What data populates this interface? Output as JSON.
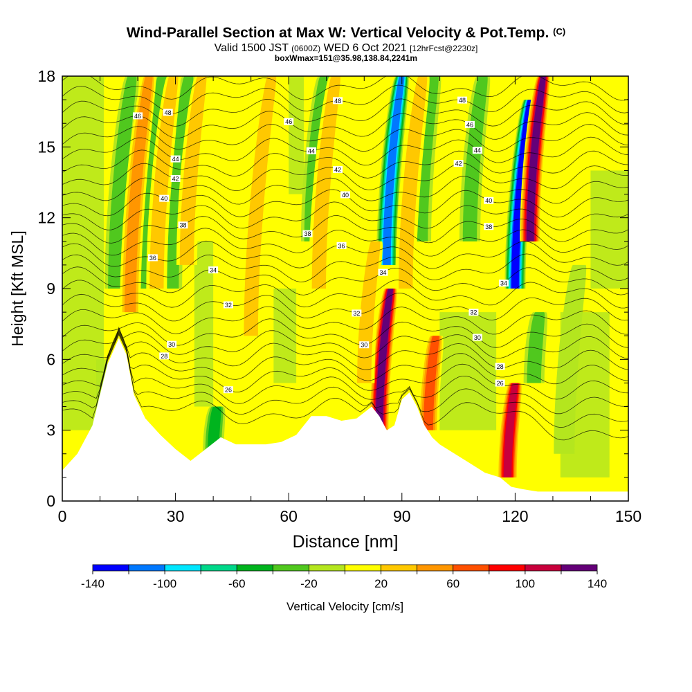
{
  "header": {
    "title": "Wind-Parallel Section at Max W: Vertical Velocity & Pot.Temp.",
    "title_unit": "(C)",
    "subtitle_valid": "Valid 1500 JST",
    "subtitle_utc": "(0600Z)",
    "subtitle_date": "WED 6 Oct 2021",
    "subtitle_fcst": "[12hrFcst@2230z]",
    "subtitle_box": "boxWmax=151@35.98,138.84,2241m"
  },
  "chart_data": {
    "type": "heatmap",
    "title": "Wind-Parallel Section at Max W: Vertical Velocity & Pot.Temp.",
    "xlabel": "Distance [nm]",
    "ylabel": "Height [Kft MSL]",
    "xlim": [
      0,
      150
    ],
    "ylim": [
      0,
      18
    ],
    "x_ticks": [
      0,
      30,
      60,
      90,
      120,
      150
    ],
    "y_ticks": [
      0,
      3,
      6,
      9,
      12,
      15,
      18
    ],
    "colorbar": {
      "label": "Vertical Velocity [cm/s]",
      "ticks": [
        -140,
        -100,
        -60,
        -20,
        20,
        60,
        100,
        140
      ],
      "bounds": [
        -140,
        -120,
        -100,
        -80,
        -60,
        -40,
        -20,
        0,
        20,
        40,
        60,
        80,
        100,
        120,
        140
      ],
      "colors": [
        "#0000ff",
        "#0078ff",
        "#00e6ff",
        "#00d88a",
        "#00b41e",
        "#50c81e",
        "#b4e61e",
        "#ffff00",
        "#ffc800",
        "#ff9600",
        "#ff5000",
        "#ff0000",
        "#c8003c",
        "#640078"
      ]
    },
    "terrain": {
      "x": [
        0,
        4,
        8,
        12,
        15,
        17,
        19,
        22,
        26,
        30,
        34,
        38,
        42,
        46,
        50,
        54,
        58,
        62,
        66,
        70,
        74,
        78,
        82,
        84,
        86,
        88,
        90,
        92,
        94,
        96,
        98,
        100,
        104,
        108,
        112,
        116,
        119,
        122,
        126,
        130,
        135,
        140,
        145,
        150
      ],
      "height": [
        1.3,
        2.0,
        3.2,
        5.8,
        6.9,
        6.2,
        4.5,
        3.5,
        2.8,
        2.2,
        1.7,
        2.2,
        2.7,
        2.4,
        2.4,
        2.4,
        2.5,
        2.8,
        3.6,
        3.6,
        3.4,
        3.5,
        4.0,
        3.6,
        3.0,
        3.2,
        4.3,
        4.6,
        4.0,
        3.2,
        2.7,
        2.4,
        2.0,
        1.6,
        1.2,
        1.0,
        0.6,
        0.5,
        0.4,
        0.4,
        0.4,
        0.4,
        0.4,
        0.4
      ]
    },
    "updrafts": [
      {
        "x": 18,
        "top": 18,
        "bottom": 8,
        "value": 55
      },
      {
        "x": 25,
        "top": 18,
        "bottom": 9,
        "value": 40
      },
      {
        "x": 33,
        "top": 18,
        "bottom": 10,
        "value": 35
      },
      {
        "x": 50,
        "top": 18,
        "bottom": 7,
        "value": 30
      },
      {
        "x": 84,
        "top": 9,
        "bottom": 3,
        "value": 130
      },
      {
        "x": 80,
        "top": 11,
        "bottom": 5,
        "value": 40
      },
      {
        "x": 97,
        "top": 7,
        "bottom": 3,
        "value": 70
      },
      {
        "x": 91,
        "top": 18,
        "bottom": 9,
        "value": 45
      },
      {
        "x": 118,
        "top": 5,
        "bottom": 1,
        "value": 120
      },
      {
        "x": 124,
        "top": 18,
        "bottom": 11,
        "value": 130
      },
      {
        "x": 68,
        "top": 18,
        "bottom": 9,
        "value": 30
      }
    ],
    "downdrafts": [
      {
        "x": 14,
        "top": 18,
        "bottom": 9,
        "value": -35
      },
      {
        "x": 22,
        "top": 18,
        "bottom": 9,
        "value": -40
      },
      {
        "x": 29,
        "top": 18,
        "bottom": 9,
        "value": -40
      },
      {
        "x": 40,
        "top": 4,
        "bottom": 2,
        "value": -55
      },
      {
        "x": 66,
        "top": 18,
        "bottom": 11,
        "value": -45
      },
      {
        "x": 86,
        "top": 18,
        "bottom": 10,
        "value": -115
      },
      {
        "x": 95,
        "top": 18,
        "bottom": 11,
        "value": -45
      },
      {
        "x": 108,
        "top": 18,
        "bottom": 11,
        "value": -40
      },
      {
        "x": 120,
        "top": 17,
        "bottom": 9,
        "value": -140
      },
      {
        "x": 125,
        "top": 8,
        "bottom": 5,
        "value": -40
      },
      {
        "x": 133,
        "top": 10,
        "bottom": 2,
        "value": -25
      }
    ],
    "theta_contours": [
      {
        "value": 26,
        "label": "26",
        "label_x": [
          44,
          116
        ]
      },
      {
        "value": 28,
        "label": "28",
        "label_x": [
          27,
          116
        ]
      },
      {
        "value": 30,
        "label": "30",
        "label_x": [
          29,
          80,
          110
        ]
      },
      {
        "value": 32,
        "label": "32",
        "label_x": [
          44,
          78,
          109
        ]
      },
      {
        "value": 34,
        "label": "34",
        "label_x": [
          40,
          85,
          117
        ]
      },
      {
        "value": 36,
        "label": "36",
        "label_x": [
          24,
          74
        ]
      },
      {
        "value": 38,
        "label": "38",
        "label_x": [
          32,
          65,
          113
        ]
      },
      {
        "value": 40,
        "label": "40",
        "label_x": [
          27,
          75,
          113
        ]
      },
      {
        "value": 42,
        "label": "42",
        "label_x": [
          30,
          73,
          105
        ]
      },
      {
        "value": 44,
        "label": "44",
        "label_x": [
          30,
          66,
          110
        ]
      },
      {
        "value": 46,
        "label": "46",
        "label_x": [
          20,
          60,
          108
        ]
      },
      {
        "value": 48,
        "label": "48",
        "label_x": [
          28,
          73,
          106
        ]
      }
    ]
  }
}
